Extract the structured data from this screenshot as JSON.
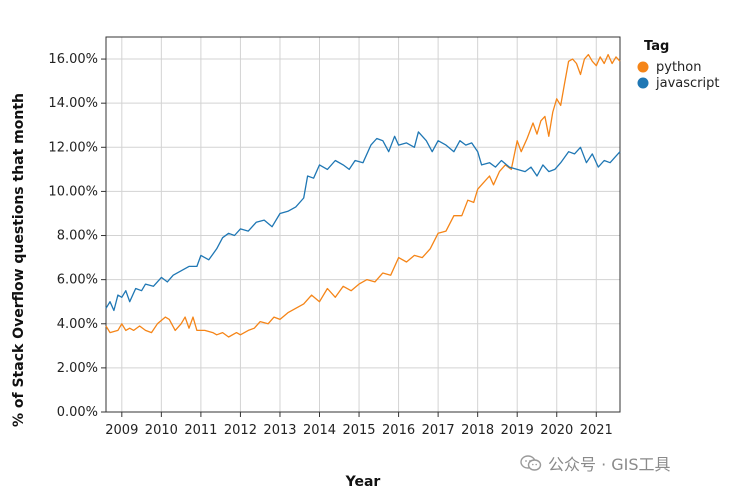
{
  "chart_data": {
    "type": "line",
    "xlabel": "Year",
    "ylabel": "% of Stack Overflow questions that month",
    "x_ticks": [
      "2009",
      "2010",
      "2011",
      "2012",
      "2013",
      "2014",
      "2015",
      "2016",
      "2017",
      "2018",
      "2019",
      "2020",
      "2021"
    ],
    "y_ticks": [
      "0.00%",
      "2.00%",
      "4.00%",
      "6.00%",
      "8.00%",
      "10.00%",
      "12.00%",
      "14.00%",
      "16.00%"
    ],
    "xlim": [
      2008.6,
      2021.6
    ],
    "ylim": [
      0,
      17
    ],
    "grid": true,
    "legend": {
      "title": "Tag",
      "position": "right"
    },
    "series": [
      {
        "name": "python",
        "color": "#f58518",
        "points": [
          [
            2008.6,
            3.9
          ],
          [
            2008.7,
            3.6
          ],
          [
            2008.9,
            3.7
          ],
          [
            2009.0,
            4.0
          ],
          [
            2009.1,
            3.7
          ],
          [
            2009.2,
            3.8
          ],
          [
            2009.3,
            3.7
          ],
          [
            2009.45,
            3.9
          ],
          [
            2009.6,
            3.7
          ],
          [
            2009.75,
            3.6
          ],
          [
            2009.9,
            4.0
          ],
          [
            2010.1,
            4.3
          ],
          [
            2010.2,
            4.2
          ],
          [
            2010.35,
            3.7
          ],
          [
            2010.5,
            4.0
          ],
          [
            2010.6,
            4.3
          ],
          [
            2010.7,
            3.8
          ],
          [
            2010.8,
            4.3
          ],
          [
            2010.9,
            3.7
          ],
          [
            2011.1,
            3.7
          ],
          [
            2011.3,
            3.6
          ],
          [
            2011.4,
            3.5
          ],
          [
            2011.55,
            3.6
          ],
          [
            2011.7,
            3.4
          ],
          [
            2011.9,
            3.6
          ],
          [
            2012.0,
            3.5
          ],
          [
            2012.2,
            3.7
          ],
          [
            2012.35,
            3.8
          ],
          [
            2012.5,
            4.1
          ],
          [
            2012.7,
            4.0
          ],
          [
            2012.85,
            4.3
          ],
          [
            2013.0,
            4.2
          ],
          [
            2013.2,
            4.5
          ],
          [
            2013.4,
            4.7
          ],
          [
            2013.6,
            4.9
          ],
          [
            2013.8,
            5.3
          ],
          [
            2014.0,
            5.0
          ],
          [
            2014.2,
            5.6
          ],
          [
            2014.4,
            5.2
          ],
          [
            2014.6,
            5.7
          ],
          [
            2014.8,
            5.5
          ],
          [
            2015.0,
            5.8
          ],
          [
            2015.2,
            6.0
          ],
          [
            2015.4,
            5.9
          ],
          [
            2015.6,
            6.3
          ],
          [
            2015.8,
            6.2
          ],
          [
            2016.0,
            7.0
          ],
          [
            2016.2,
            6.8
          ],
          [
            2016.4,
            7.1
          ],
          [
            2016.6,
            7.0
          ],
          [
            2016.8,
            7.4
          ],
          [
            2017.0,
            8.1
          ],
          [
            2017.2,
            8.2
          ],
          [
            2017.4,
            8.9
          ],
          [
            2017.6,
            8.9
          ],
          [
            2017.75,
            9.6
          ],
          [
            2017.9,
            9.5
          ],
          [
            2018.0,
            10.1
          ],
          [
            2018.15,
            10.4
          ],
          [
            2018.3,
            10.7
          ],
          [
            2018.4,
            10.3
          ],
          [
            2018.55,
            10.9
          ],
          [
            2018.7,
            11.2
          ],
          [
            2018.85,
            11.0
          ],
          [
            2019.0,
            12.3
          ],
          [
            2019.1,
            11.8
          ],
          [
            2019.25,
            12.4
          ],
          [
            2019.4,
            13.1
          ],
          [
            2019.5,
            12.6
          ],
          [
            2019.6,
            13.2
          ],
          [
            2019.7,
            13.4
          ],
          [
            2019.8,
            12.5
          ],
          [
            2019.9,
            13.6
          ],
          [
            2020.0,
            14.2
          ],
          [
            2020.1,
            13.9
          ],
          [
            2020.2,
            14.9
          ],
          [
            2020.3,
            15.9
          ],
          [
            2020.4,
            16.0
          ],
          [
            2020.5,
            15.8
          ],
          [
            2020.6,
            15.3
          ],
          [
            2020.7,
            16.0
          ],
          [
            2020.8,
            16.2
          ],
          [
            2020.9,
            15.9
          ],
          [
            2021.0,
            15.7
          ],
          [
            2021.1,
            16.1
          ],
          [
            2021.2,
            15.8
          ],
          [
            2021.3,
            16.2
          ],
          [
            2021.4,
            15.8
          ],
          [
            2021.5,
            16.1
          ],
          [
            2021.6,
            15.9
          ]
        ]
      },
      {
        "name": "javascript",
        "color": "#1f77b4",
        "points": [
          [
            2008.6,
            4.7
          ],
          [
            2008.7,
            5.0
          ],
          [
            2008.8,
            4.6
          ],
          [
            2008.9,
            5.3
          ],
          [
            2009.0,
            5.2
          ],
          [
            2009.1,
            5.5
          ],
          [
            2009.2,
            5.0
          ],
          [
            2009.35,
            5.6
          ],
          [
            2009.5,
            5.5
          ],
          [
            2009.6,
            5.8
          ],
          [
            2009.8,
            5.7
          ],
          [
            2010.0,
            6.1
          ],
          [
            2010.15,
            5.9
          ],
          [
            2010.3,
            6.2
          ],
          [
            2010.5,
            6.4
          ],
          [
            2010.7,
            6.6
          ],
          [
            2010.9,
            6.6
          ],
          [
            2011.0,
            7.1
          ],
          [
            2011.2,
            6.9
          ],
          [
            2011.4,
            7.4
          ],
          [
            2011.55,
            7.9
          ],
          [
            2011.7,
            8.1
          ],
          [
            2011.85,
            8.0
          ],
          [
            2012.0,
            8.3
          ],
          [
            2012.2,
            8.2
          ],
          [
            2012.4,
            8.6
          ],
          [
            2012.6,
            8.7
          ],
          [
            2012.8,
            8.4
          ],
          [
            2013.0,
            9.0
          ],
          [
            2013.2,
            9.1
          ],
          [
            2013.4,
            9.3
          ],
          [
            2013.6,
            9.7
          ],
          [
            2013.7,
            10.7
          ],
          [
            2013.85,
            10.6
          ],
          [
            2014.0,
            11.2
          ],
          [
            2014.2,
            11.0
          ],
          [
            2014.4,
            11.4
          ],
          [
            2014.6,
            11.2
          ],
          [
            2014.75,
            11.0
          ],
          [
            2014.9,
            11.4
          ],
          [
            2015.1,
            11.3
          ],
          [
            2015.3,
            12.1
          ],
          [
            2015.45,
            12.4
          ],
          [
            2015.6,
            12.3
          ],
          [
            2015.75,
            11.8
          ],
          [
            2015.9,
            12.5
          ],
          [
            2016.0,
            12.1
          ],
          [
            2016.2,
            12.2
          ],
          [
            2016.4,
            12.0
          ],
          [
            2016.5,
            12.7
          ],
          [
            2016.7,
            12.3
          ],
          [
            2016.85,
            11.8
          ],
          [
            2017.0,
            12.3
          ],
          [
            2017.2,
            12.1
          ],
          [
            2017.4,
            11.8
          ],
          [
            2017.55,
            12.3
          ],
          [
            2017.7,
            12.1
          ],
          [
            2017.85,
            12.2
          ],
          [
            2018.0,
            11.8
          ],
          [
            2018.1,
            11.2
          ],
          [
            2018.3,
            11.3
          ],
          [
            2018.45,
            11.1
          ],
          [
            2018.6,
            11.4
          ],
          [
            2018.8,
            11.1
          ],
          [
            2019.0,
            11.0
          ],
          [
            2019.2,
            10.9
          ],
          [
            2019.35,
            11.1
          ],
          [
            2019.5,
            10.7
          ],
          [
            2019.65,
            11.2
          ],
          [
            2019.8,
            10.9
          ],
          [
            2019.95,
            11.0
          ],
          [
            2020.1,
            11.3
          ],
          [
            2020.3,
            11.8
          ],
          [
            2020.45,
            11.7
          ],
          [
            2020.6,
            12.0
          ],
          [
            2020.75,
            11.3
          ],
          [
            2020.9,
            11.7
          ],
          [
            2021.05,
            11.1
          ],
          [
            2021.2,
            11.4
          ],
          [
            2021.35,
            11.3
          ],
          [
            2021.5,
            11.6
          ],
          [
            2021.6,
            11.8
          ]
        ]
      }
    ]
  },
  "watermark": "公众号 · GIS工具"
}
